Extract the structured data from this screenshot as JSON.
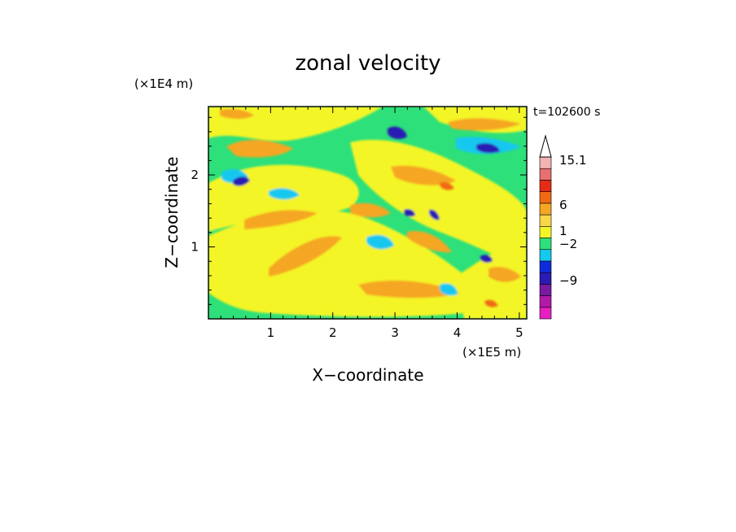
{
  "chart_data": {
    "type": "heatmap",
    "title": "zonal velocity",
    "xlabel": "X−coordinate",
    "ylabel": "Z−coordinate",
    "x_unit": "(×1E5 m)",
    "y_unit": "(×1E4 m)",
    "time_label": "t=102600 s",
    "xlim": [
      0,
      5.12
    ],
    "ylim": [
      0,
      2.95
    ],
    "x_ticks": [
      1,
      2,
      3,
      4,
      5
    ],
    "x_tick_labels": [
      "1",
      "2",
      "3",
      "4",
      "5"
    ],
    "y_ticks": [
      1,
      2
    ],
    "y_tick_labels": [
      "1",
      "2"
    ],
    "grid": false,
    "colorbar": {
      "levels_colors": [
        "#e81ec0",
        "#b319a8",
        "#7a1aa0",
        "#2b1ab3",
        "#0f2bdb",
        "#14c8f0",
        "#2de07a",
        "#f4f528",
        "#f7d64a",
        "#f5a623",
        "#f06a14",
        "#e62b17",
        "#e87070",
        "#f3b3b3"
      ],
      "tick_labels": [
        "15.1",
        "6",
        "1",
        "−2",
        "−9"
      ],
      "tick_values": [
        15.1,
        6,
        1,
        -2,
        -9
      ],
      "extend": "max"
    }
  }
}
